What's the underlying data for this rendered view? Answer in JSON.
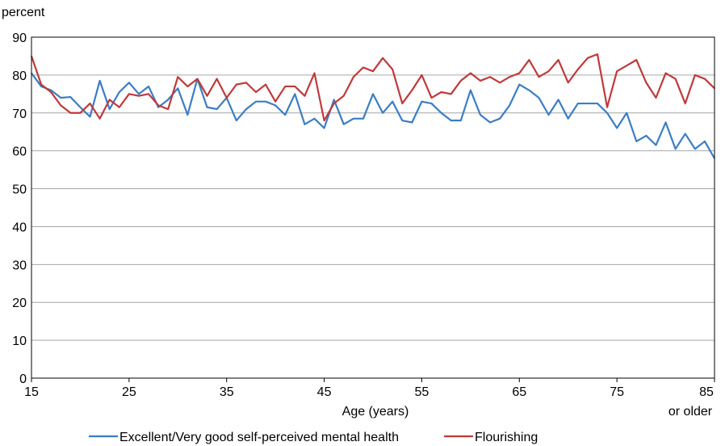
{
  "chart_data": {
    "type": "line",
    "ylabel": "percent",
    "xlabel": "Age (years)",
    "xlim": [
      15,
      85
    ],
    "ylim": [
      0,
      90
    ],
    "x_ticks": [
      15,
      25,
      35,
      45,
      55,
      65,
      75,
      85
    ],
    "y_ticks": [
      0,
      10,
      20,
      30,
      40,
      50,
      60,
      70,
      80,
      90
    ],
    "x_last_tick_suffix": "or older",
    "grid": "horizontal",
    "legend_position": "bottom",
    "x": [
      15,
      16,
      17,
      18,
      19,
      20,
      21,
      22,
      23,
      24,
      25,
      26,
      27,
      28,
      29,
      30,
      31,
      32,
      33,
      34,
      35,
      36,
      37,
      38,
      39,
      40,
      41,
      42,
      43,
      44,
      45,
      46,
      47,
      48,
      49,
      50,
      51,
      52,
      53,
      54,
      55,
      56,
      57,
      58,
      59,
      60,
      61,
      62,
      63,
      64,
      65,
      66,
      67,
      68,
      69,
      70,
      71,
      72,
      73,
      74,
      75,
      76,
      77,
      78,
      79,
      80,
      81,
      82,
      83,
      84,
      85
    ],
    "series": [
      {
        "name": "Excellent/Very good self-perceived mental health",
        "color": "#3b7dc4",
        "values": [
          80.5,
          77.0,
          76.0,
          74.0,
          74.2,
          71.5,
          69.0,
          78.5,
          71.0,
          75.5,
          78.0,
          75.0,
          77.0,
          71.5,
          73.5,
          76.5,
          69.5,
          79.0,
          71.5,
          71.0,
          74.0,
          68.0,
          71.0,
          73.0,
          73.0,
          72.0,
          69.5,
          75.0,
          67.0,
          68.5,
          66.0,
          73.5,
          67.0,
          68.5,
          68.5,
          75.0,
          70.0,
          73.0,
          68.0,
          67.5,
          73.0,
          72.5,
          70.0,
          68.0,
          68.0,
          76.0,
          69.5,
          67.5,
          68.5,
          72.0,
          77.5,
          76.0,
          74.0,
          69.5,
          73.5,
          68.5,
          72.5,
          72.5,
          72.5,
          70.0,
          66.0,
          70.0,
          62.5,
          64.0,
          61.5,
          67.5,
          60.5,
          64.5,
          60.5,
          62.5,
          58.0
        ]
      },
      {
        "name": "Flourishing",
        "color": "#c0393b",
        "values": [
          85.0,
          77.5,
          75.5,
          72.0,
          70.0,
          70.0,
          72.5,
          68.5,
          73.5,
          71.5,
          75.0,
          74.5,
          75.0,
          72.0,
          71.0,
          79.5,
          77.0,
          79.0,
          74.5,
          79.0,
          74.0,
          77.5,
          78.0,
          75.5,
          77.5,
          73.0,
          77.0,
          77.0,
          74.5,
          80.5,
          68.0,
          72.5,
          74.5,
          79.5,
          82.0,
          81.0,
          84.5,
          81.5,
          72.5,
          76.0,
          80.0,
          74.0,
          75.5,
          75.0,
          78.5,
          80.5,
          78.5,
          79.5,
          78.0,
          79.5,
          80.5,
          84.0,
          79.5,
          81.0,
          84.0,
          78.0,
          81.5,
          84.5,
          85.5,
          71.5,
          81.0,
          82.5,
          84.0,
          78.0,
          74.0,
          80.5,
          79.0,
          72.5,
          80.0,
          79.0,
          76.5
        ]
      }
    ]
  }
}
